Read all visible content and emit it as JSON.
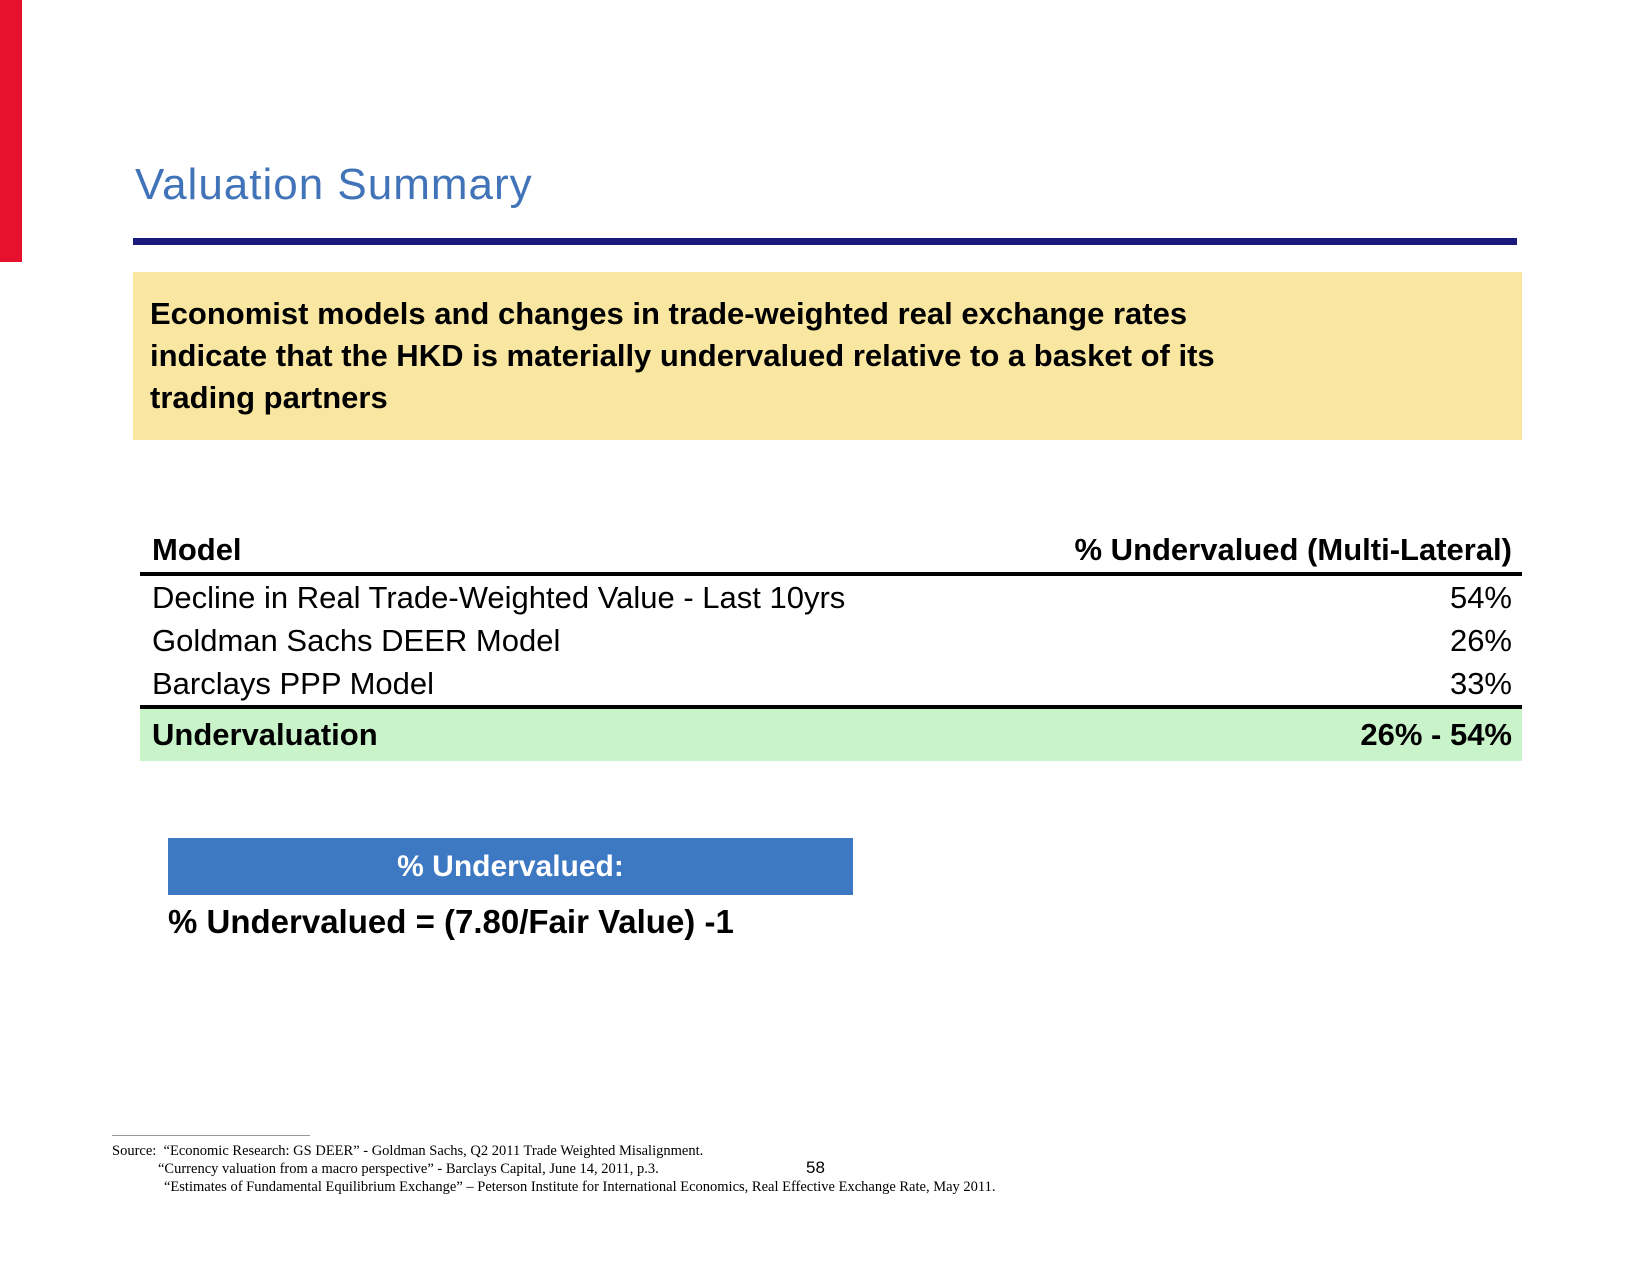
{
  "slide": {
    "title": "Valuation Summary",
    "page_number": "58"
  },
  "highlight": {
    "lines": [
      "Economist models and changes in trade-weighted real exchange rates",
      "indicate that the HKD is materially undervalued relative to a basket of its",
      "trading partners"
    ]
  },
  "table": {
    "columns": [
      "Model",
      "% Undervalued (Multi-Lateral)"
    ],
    "rows": [
      {
        "model": "Decline in Real Trade-Weighted Value - Last 10yrs",
        "value": "54%"
      },
      {
        "model": "Goldman Sachs DEER Model",
        "value": "26%"
      },
      {
        "model": "Barclays PPP Model",
        "value": "33%"
      }
    ],
    "summary_row": {
      "model": "Undervaluation",
      "value": "26% - 54%"
    }
  },
  "callout": {
    "banner_label": "% Undervalued:",
    "formula": "% Undervalued = (7.80/Fair Value) -1"
  },
  "footer": {
    "source_label": "Source:",
    "source_lines": [
      "“Economic Research: GS DEER” - Goldman Sachs, Q2 2011 Trade Weighted Misalignment.",
      "“Currency valuation from a macro perspective” - Barclays Capital, June 14, 2011, p.3.",
      "“Estimates of Fundamental Equilibrium Exchange” – Peterson Institute for International Economics, Real Effective Exchange Rate, May 2011."
    ]
  },
  "colors": {
    "red_bar": "#e8112d",
    "title_blue": "#4173b8",
    "rule_navy": "#1a1a7c",
    "highlight_yellow": "#f9e7a1",
    "banner_blue": "#3d78c2",
    "row_green": "#c9f4c9",
    "text_black": "#000000"
  }
}
